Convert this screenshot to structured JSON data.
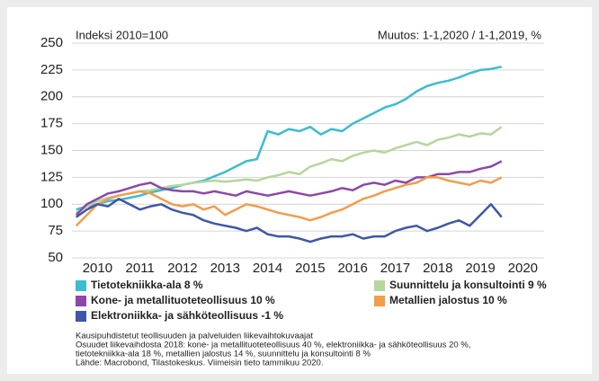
{
  "chart_data": {
    "type": "line",
    "title": "Indeksi 2010=100",
    "subtitle": "Muutos: 1-1,2020 / 1-1,2019, %",
    "x": [
      2010,
      2010.25,
      2010.5,
      2010.75,
      2011,
      2011.25,
      2011.5,
      2011.75,
      2012,
      2012.25,
      2012.5,
      2012.75,
      2013,
      2013.25,
      2013.5,
      2013.75,
      2014,
      2014.25,
      2014.5,
      2014.75,
      2015,
      2015.25,
      2015.5,
      2015.75,
      2016,
      2016.25,
      2016.5,
      2016.75,
      2017,
      2017.25,
      2017.5,
      2017.75,
      2018,
      2018.25,
      2018.5,
      2018.75,
      2019,
      2019.25,
      2019.5,
      2019.75,
      2020
    ],
    "series": [
      {
        "name": "Tietotekniikka-ala 8 %",
        "color": "#3bbcd1",
        "values": [
          95,
          98,
          100,
          103,
          104,
          106,
          108,
          111,
          113,
          115,
          118,
          120,
          122,
          126,
          130,
          135,
          140,
          142,
          168,
          165,
          170,
          168,
          172,
          165,
          170,
          168,
          175,
          180,
          185,
          190,
          193,
          198,
          205,
          210,
          213,
          215,
          218,
          222,
          225,
          226,
          228
        ]
      },
      {
        "name": "Suunnittelu ja konsultointi 9 %",
        "color": "#b5d69c",
        "values": [
          92,
          98,
          103,
          106,
          108,
          110,
          112,
          113,
          115,
          117,
          118,
          120,
          121,
          122,
          121,
          122,
          123,
          122,
          125,
          127,
          130,
          128,
          135,
          138,
          142,
          140,
          145,
          148,
          150,
          148,
          152,
          155,
          158,
          155,
          160,
          162,
          165,
          163,
          166,
          165,
          172
        ]
      },
      {
        "name": "Kone- ja metallituoteteollisuus 10 %",
        "color": "#8b48a8",
        "values": [
          90,
          100,
          105,
          110,
          112,
          115,
          118,
          120,
          115,
          113,
          112,
          112,
          110,
          112,
          110,
          108,
          112,
          110,
          108,
          110,
          112,
          110,
          108,
          110,
          112,
          115,
          113,
          118,
          120,
          118,
          122,
          120,
          125,
          125,
          128,
          128,
          130,
          130,
          133,
          135,
          140
        ]
      },
      {
        "name": "Metallien jalostus 10 %",
        "color": "#f39c4a",
        "values": [
          80,
          90,
          100,
          105,
          108,
          110,
          112,
          110,
          105,
          100,
          98,
          100,
          95,
          98,
          90,
          95,
          100,
          98,
          95,
          92,
          90,
          88,
          85,
          88,
          92,
          95,
          100,
          105,
          108,
          112,
          115,
          118,
          120,
          125,
          125,
          122,
          120,
          118,
          122,
          120,
          125
        ]
      },
      {
        "name": "Elektroniikka- ja sähköteollisuus -1 %",
        "color": "#3f57a8",
        "values": [
          88,
          95,
          100,
          98,
          105,
          100,
          95,
          98,
          100,
          95,
          92,
          90,
          85,
          82,
          80,
          78,
          75,
          78,
          72,
          70,
          70,
          68,
          65,
          68,
          70,
          70,
          72,
          68,
          70,
          70,
          75,
          78,
          80,
          75,
          78,
          82,
          85,
          80,
          90,
          100,
          88
        ]
      }
    ],
    "xlim": [
      2009.9,
      2021
    ],
    "xticks": [
      {
        "value": 2010.5,
        "label": "2010"
      },
      {
        "value": 2011.5,
        "label": "2011"
      },
      {
        "value": 2012.5,
        "label": "2012"
      },
      {
        "value": 2013.5,
        "label": "2013"
      },
      {
        "value": 2014.5,
        "label": "2014"
      },
      {
        "value": 2015.5,
        "label": "2015"
      },
      {
        "value": 2016.5,
        "label": "2016"
      },
      {
        "value": 2017.5,
        "label": "2017"
      },
      {
        "value": 2018.5,
        "label": "2018"
      },
      {
        "value": 2019.5,
        "label": "2019"
      },
      {
        "value": 2020.5,
        "label": "2020"
      }
    ],
    "ylim": [
      50,
      250
    ],
    "yticks": [
      50,
      75,
      100,
      125,
      150,
      175,
      200,
      225,
      250
    ],
    "grid": true,
    "notes": [
      "Kausipuhdistetut teollisuuden ja palveluiden liikevaihtokuvaajat",
      "Osuudet liikevaihdosta 2018: kone- ja metallituoteteollisuus 40 %, elektroniikka- ja sähköteollisuus 20 %,",
      "tietotekniikka-ala 18 %, metallien jalostus 14 %, suunnittelu ja konsultointi 8 %",
      "Lähde: Macrobond, Tilastokeskus. Viimeisin tieto tammikuu 2020."
    ]
  }
}
